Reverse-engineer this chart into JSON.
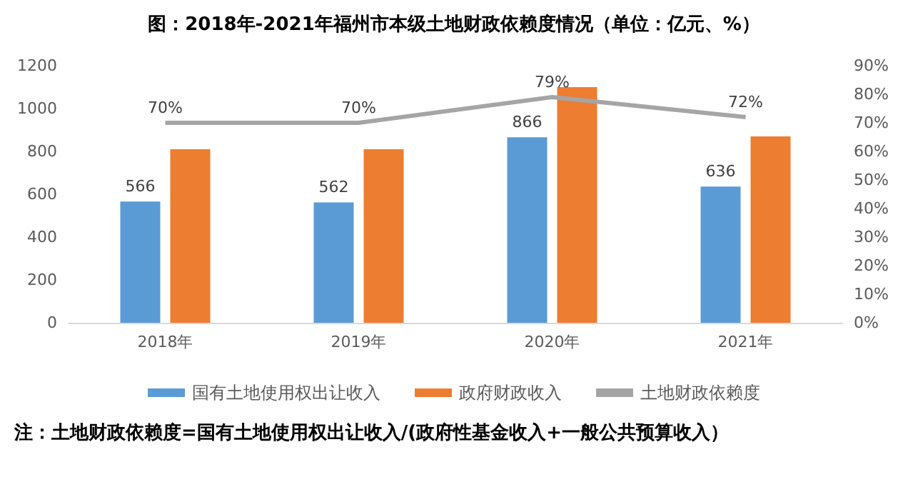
{
  "chart_data": {
    "type": "bar",
    "title": "图：2018年-2021年福州市本级土地财政依赖度情况（单位：亿元、%）",
    "categories": [
      "2018年",
      "2019年",
      "2020年",
      "2021年"
    ],
    "series": [
      {
        "name": "国有土地使用权出让收入",
        "color": "#5b9bd5",
        "values": [
          566,
          562,
          866,
          636
        ],
        "value_labels": [
          "566",
          "562",
          "866",
          "636"
        ]
      },
      {
        "name": "政府财政收入",
        "color": "#ed7d31",
        "values": [
          810,
          810,
          1100,
          870
        ]
      },
      {
        "name": "土地财政依赖度",
        "type": "line",
        "axis": "y2",
        "color": "#a5a5a5",
        "values": [
          70,
          70,
          79,
          72
        ],
        "value_labels": [
          "70%",
          "70%",
          "79%",
          "72%"
        ]
      }
    ],
    "ylim": [
      0,
      1200
    ],
    "yticks": [
      0,
      200,
      400,
      600,
      800,
      1000,
      1200
    ],
    "y2lim": [
      0,
      90
    ],
    "y2ticks": [
      {
        "value": 0,
        "label": "0%"
      },
      {
        "value": 10,
        "label": "10%"
      },
      {
        "value": 20,
        "label": "20%"
      },
      {
        "value": 30,
        "label": "30%"
      },
      {
        "value": 40,
        "label": "40%"
      },
      {
        "value": 50,
        "label": "50%"
      },
      {
        "value": 60,
        "label": "60%"
      },
      {
        "value": 70,
        "label": "70%"
      },
      {
        "value": 80,
        "label": "80%"
      },
      {
        "value": 90,
        "label": "90%"
      }
    ],
    "grid": false,
    "legend": "bottom",
    "marker": "none",
    "annotations": [
      "注：土地财政依赖度=国有土地使用权出让收入/(政府性基金收入+一般公共预算收入）"
    ]
  }
}
